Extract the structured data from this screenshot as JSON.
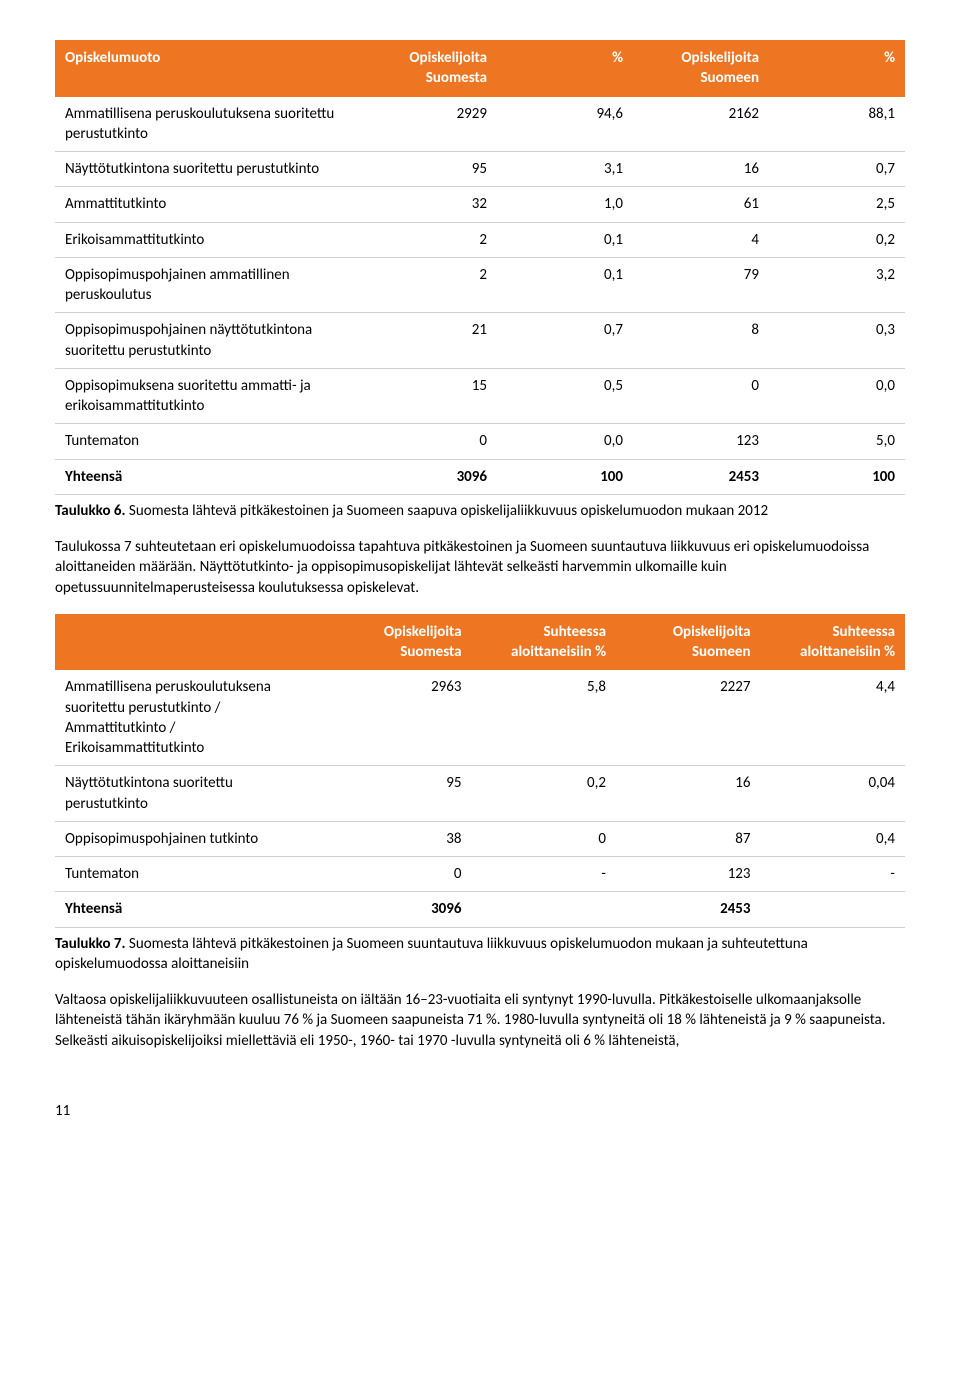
{
  "table6": {
    "headers": [
      "Opiskelumuoto",
      "Opiskelijoita Suomesta",
      "%",
      "Opiskelijoita Suomeen",
      "%"
    ],
    "rows": [
      {
        "label": "Ammatillisena peruskoulutuksena suoritettu perustutkinto",
        "c1": "2929",
        "c2": "94,6",
        "c3": "2162",
        "c4": "88,1"
      },
      {
        "label": "Näyttötutkintona suoritettu perustutkinto",
        "c1": "95",
        "c2": "3,1",
        "c3": "16",
        "c4": "0,7"
      },
      {
        "label": "Ammattitutkinto",
        "c1": "32",
        "c2": "1,0",
        "c3": "61",
        "c4": "2,5"
      },
      {
        "label": "Erikoisammattitutkinto",
        "c1": "2",
        "c2": "0,1",
        "c3": "4",
        "c4": "0,2"
      },
      {
        "label": "Oppisopimuspohjainen ammatillinen peruskoulutus",
        "c1": "2",
        "c2": "0,1",
        "c3": "79",
        "c4": "3,2"
      },
      {
        "label": "Oppisopimuspohjainen näyttötutkintona suoritettu perustutkinto",
        "c1": "21",
        "c2": "0,7",
        "c3": "8",
        "c4": "0,3"
      },
      {
        "label": "Oppisopimuksena suoritettu ammatti- ja erikoisammattitutkinto",
        "c1": "15",
        "c2": "0,5",
        "c3": "0",
        "c4": "0,0"
      },
      {
        "label": "Tuntematon",
        "c1": "0",
        "c2": "0,0",
        "c3": "123",
        "c4": "5,0"
      }
    ],
    "total": {
      "label": "Yhteensä",
      "c1": "3096",
      "c2": "100",
      "c3": "2453",
      "c4": "100"
    }
  },
  "caption6_bold": "Taulukko 6.",
  "caption6_rest": " Suomesta lähtevä pitkäkestoinen ja Suomeen saapuva opiskelijaliikkuvuus opiskelumuodon mukaan 2012",
  "para1": "Taulukossa 7 suhteutetaan eri opiskelumuodoissa tapahtuva pitkäkestoinen ja Suomeen suuntautuva liikkuvuus eri opiskelumuodoissa aloittaneiden määrään. Näyttötutkinto- ja oppisopimusopiskelijat lähtevät selkeästi harvemmin ulkomaille kuin opetussuunnitelmaperusteisessa koulutuksessa opiskelevat.",
  "table7": {
    "headers": [
      "",
      "Opiskelijoita Suomesta",
      "Suhteessa aloittaneisiin %",
      "Opiskelijoita Suomeen",
      "Suhteessa aloittaneisiin %"
    ],
    "rows": [
      {
        "label": "Ammatillisena peruskoulutuksena suoritettu perustutkinto / Ammattitutkinto / Erikoisammattitutkinto",
        "c1": "2963",
        "c2": "5,8",
        "c3": "2227",
        "c4": "4,4"
      },
      {
        "label": "Näyttötutkintona suoritettu perustutkinto",
        "c1": "95",
        "c2": "0,2",
        "c3": "16",
        "c4": "0,04"
      },
      {
        "label": "Oppisopimuspohjainen tutkinto",
        "c1": "38",
        "c2": "0",
        "c3": "87",
        "c4": "0,4"
      },
      {
        "label": "Tuntematon",
        "c1": "0",
        "c2": "-",
        "c3": "123",
        "c4": "-"
      }
    ],
    "total": {
      "label": "Yhteensä",
      "c1": "3096",
      "c2": "",
      "c3": "2453",
      "c4": ""
    }
  },
  "caption7_bold": "Taulukko 7.",
  "caption7_rest": " Suomesta lähtevä pitkäkestoinen ja Suomeen suuntautuva liikkuvuus opiskelumuodon mukaan ja suhteutettuna opiskelumuodossa aloittaneisiin",
  "para2": "Valtaosa opiskelijaliikkuvuuteen osallistuneista on iältään 16–23-vuotiaita eli syntynyt 1990-luvulla. Pitkäkestoiselle ulkomaanjaksolle lähteneistä tähän ikäryhmään kuuluu 76 % ja Suomeen saapuneista 71 %. 1980-luvulla syntyneitä oli 18 % lähteneistä ja 9 % saapuneista. Selkeästi aikuisopiskelijoiksi miellettäviä eli 1950-, 1960- tai 1970 -luvulla syntyneitä oli 6 % lähteneistä,",
  "page_number": "11"
}
